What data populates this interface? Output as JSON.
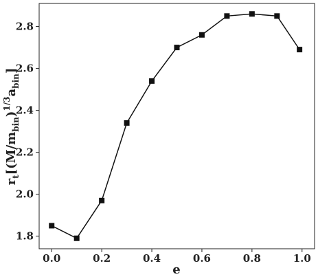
{
  "chart_data": {
    "type": "line",
    "xlabel": "e",
    "ylabel": [
      "r",
      "t",
      "[(M/m",
      "bin",
      ")",
      "1/3",
      "a",
      "bin",
      "]"
    ],
    "x": [
      0.0,
      0.1,
      0.2,
      0.3,
      0.4,
      0.5,
      0.6,
      0.7,
      0.8,
      0.9,
      0.99
    ],
    "series": [
      {
        "color": "#111111",
        "values": [
          1.85,
          1.79,
          1.97,
          2.34,
          2.54,
          2.7,
          2.76,
          2.85,
          2.86,
          2.85,
          2.69
        ]
      }
    ],
    "xlim": [
      -0.05,
      1.05
    ],
    "ylim": [
      1.74,
      2.91
    ],
    "xticks": [
      {
        "value": 0,
        "label": "0.0"
      },
      0.2,
      0.4,
      0.6,
      0.8,
      {
        "value": 1,
        "label": "1.0"
      }
    ],
    "yticks": [
      1.8,
      {
        "value": 2,
        "label": "2.0"
      },
      2.2,
      2.4,
      2.6,
      2.8
    ],
    "grid": false,
    "marker": "square"
  }
}
